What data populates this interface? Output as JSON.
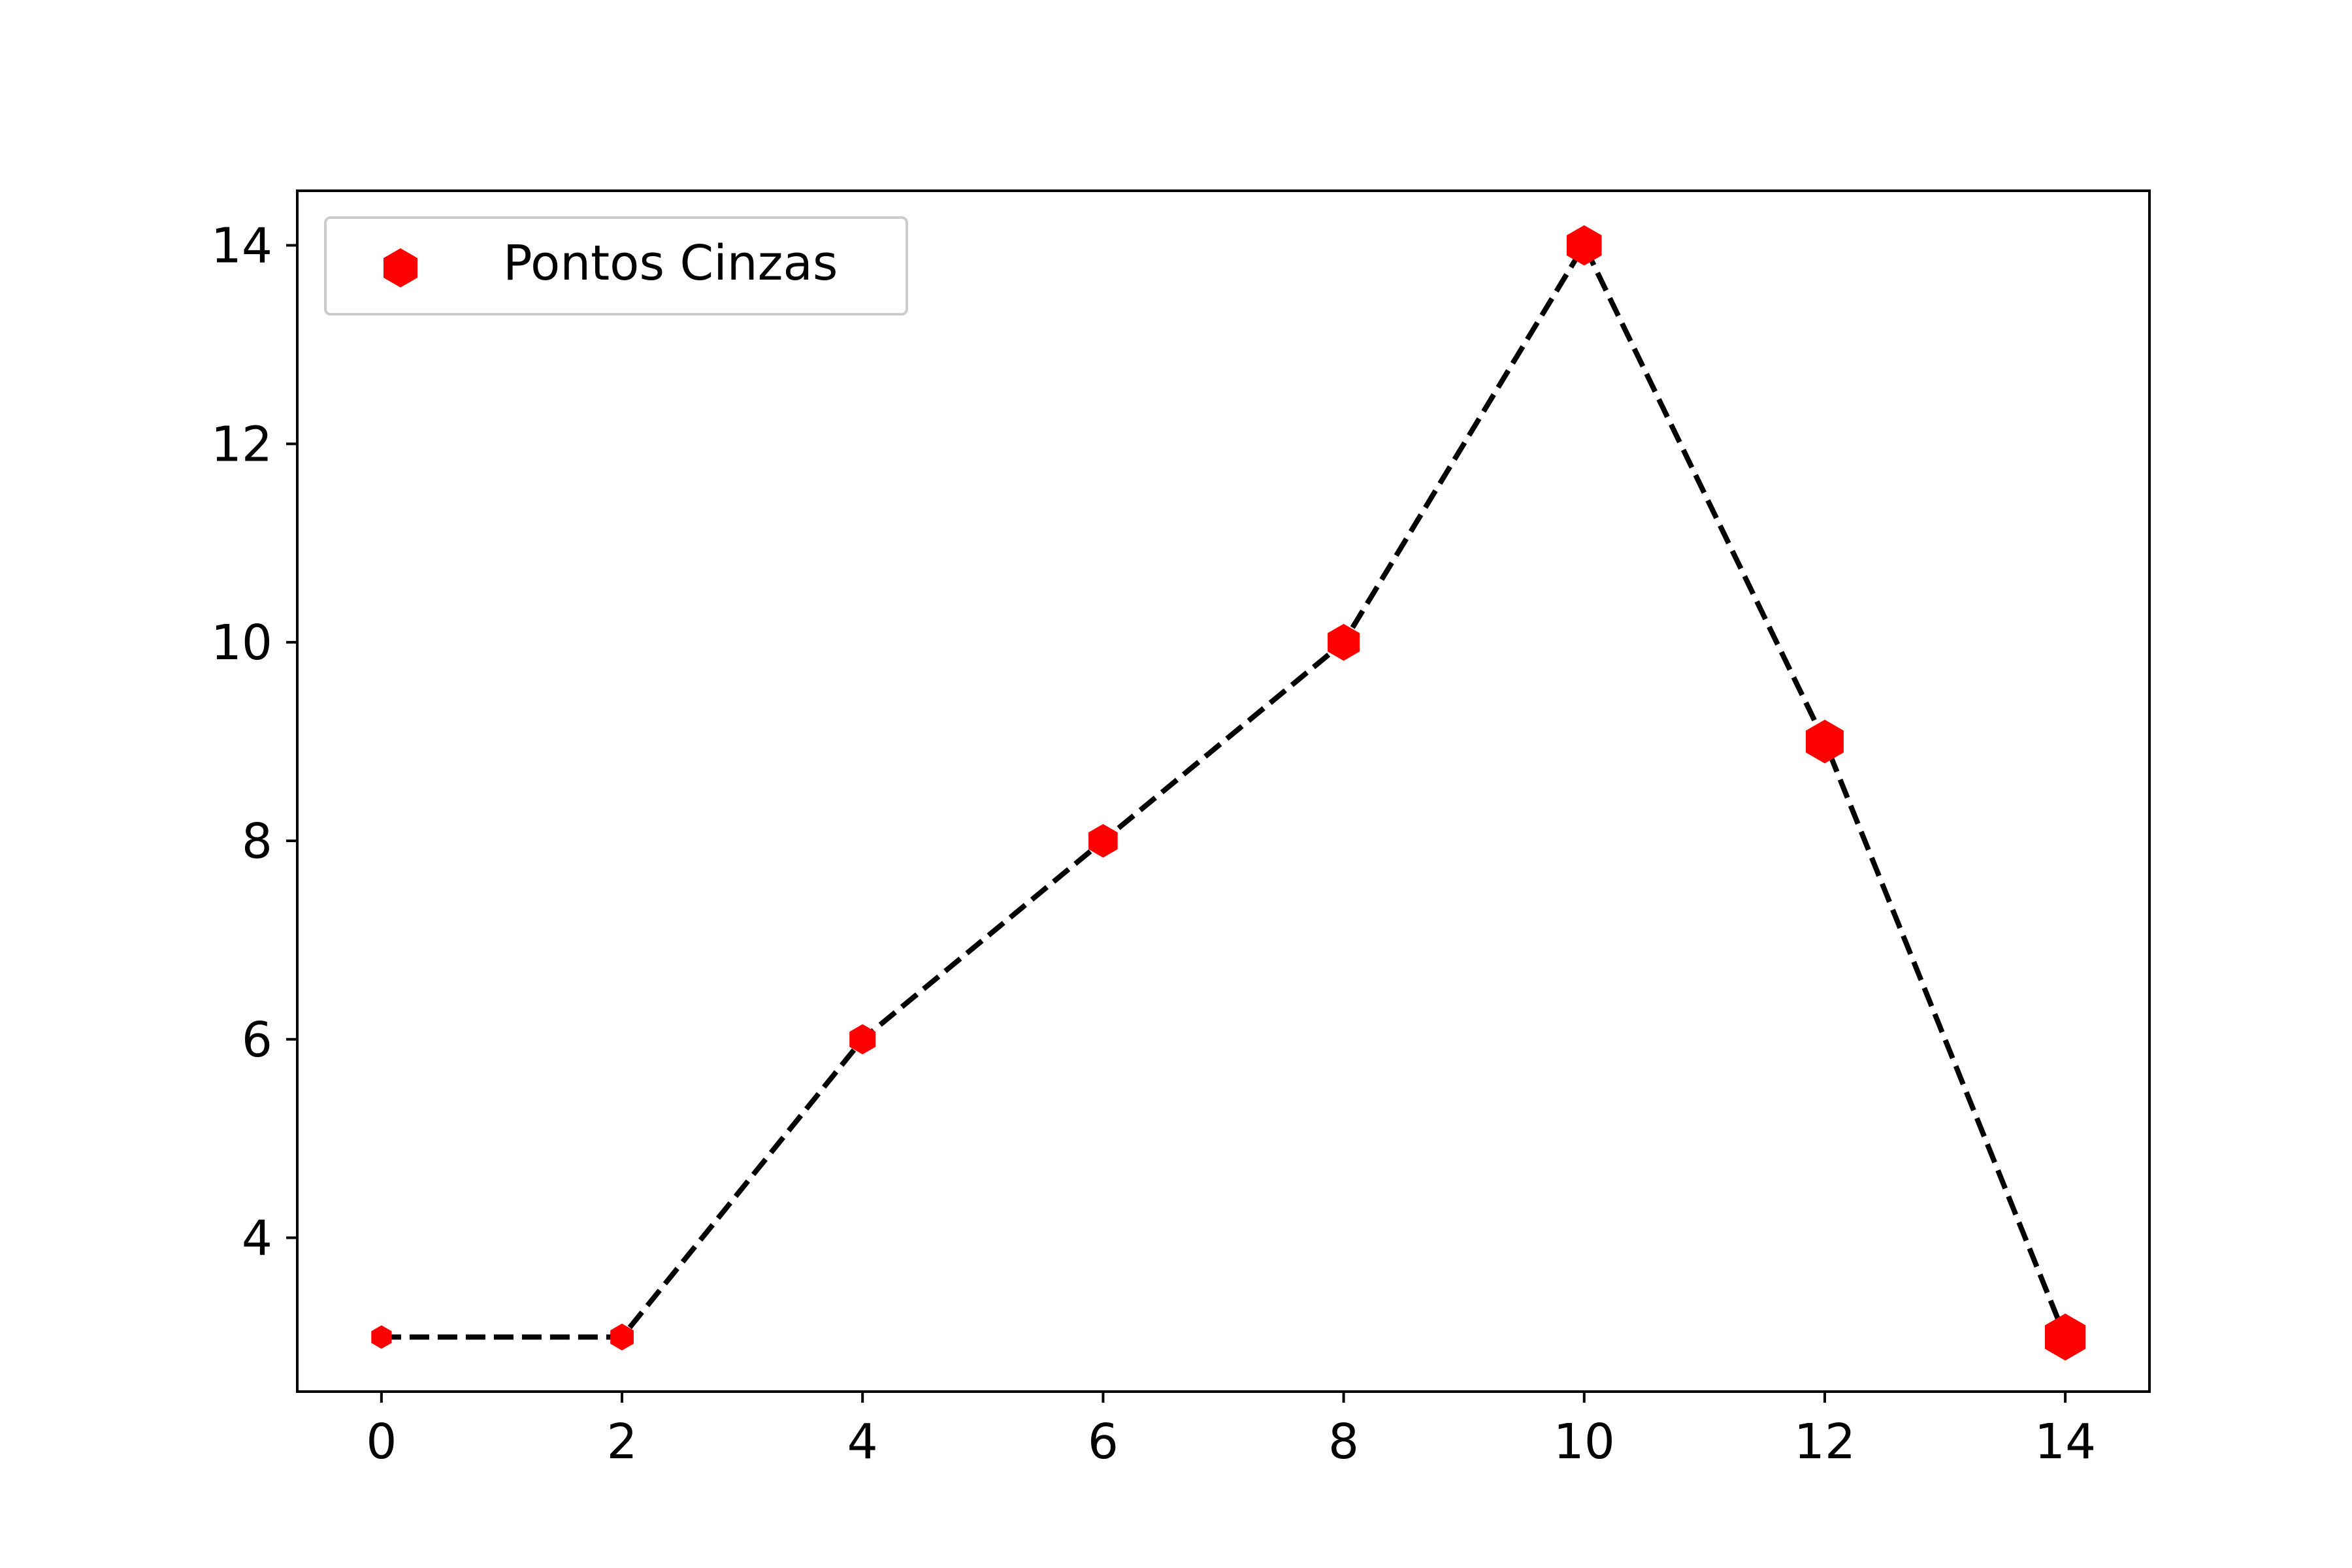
{
  "chart_data": {
    "type": "scatter",
    "title": "",
    "xlabel": "",
    "ylabel": "",
    "x": [
      0,
      2,
      4,
      6,
      8,
      10,
      12,
      14
    ],
    "series": [
      {
        "name": "Pontos Cinzas",
        "values": [
          3,
          3,
          6,
          8,
          10,
          14,
          9,
          3
        ],
        "marker": "hexagon",
        "marker_size_rank": [
          1,
          2,
          3,
          4,
          5,
          6,
          7,
          8
        ],
        "color": "#ff0000"
      }
    ],
    "connecting_line": {
      "style": "dashed",
      "color": "#000000"
    },
    "xlim": [
      -0.7,
      14.7
    ],
    "ylim": [
      2.45,
      14.55
    ],
    "xticks": [
      "0",
      "2",
      "4",
      "6",
      "8",
      "10",
      "12",
      "14"
    ],
    "yticks": [
      "4",
      "6",
      "8",
      "10",
      "12",
      "14"
    ],
    "grid": false,
    "legend_position": "upper-left"
  }
}
